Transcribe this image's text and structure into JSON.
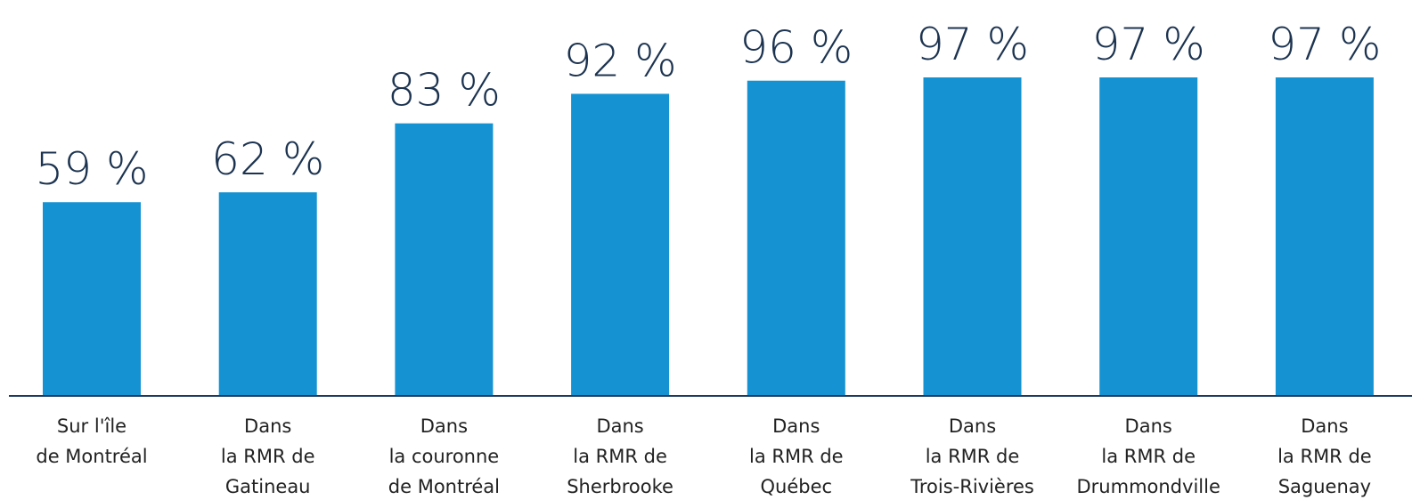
{
  "chart_data": {
    "type": "bar",
    "categories": [
      [
        "Sur l'île",
        "de Montréal"
      ],
      [
        "Dans",
        "la RMR de",
        "Gatineau"
      ],
      [
        "Dans",
        "la couronne",
        "de Montréal"
      ],
      [
        "Dans",
        "la RMR de",
        "Sherbrooke"
      ],
      [
        "Dans",
        "la RMR de",
        "Québec"
      ],
      [
        "Dans",
        "la RMR de",
        "Trois-Rivières"
      ],
      [
        "Dans",
        "la RMR de",
        "Drummondville"
      ],
      [
        "Dans",
        "la RMR de",
        "Saguenay"
      ]
    ],
    "values": [
      59,
      62,
      83,
      92,
      96,
      97,
      97,
      97
    ],
    "value_labels": [
      "59 %",
      "62 %",
      "83 %",
      "92 %",
      "96 %",
      "97 %",
      "97 %",
      "97 %"
    ],
    "color": "#1592d2"
  }
}
